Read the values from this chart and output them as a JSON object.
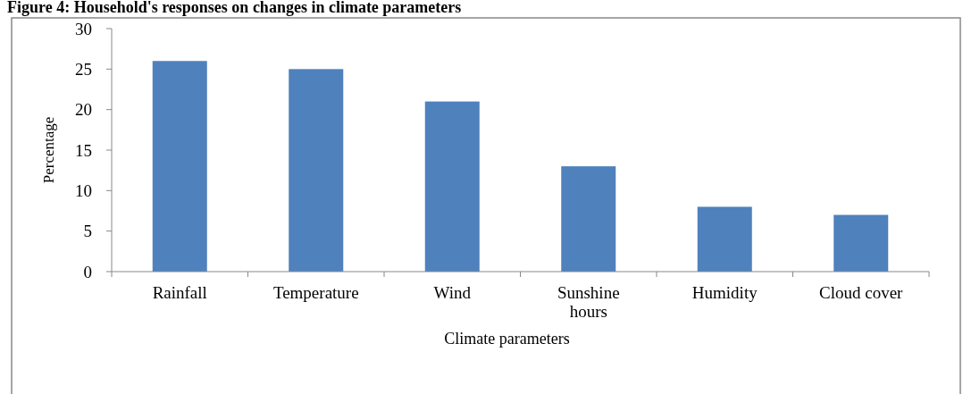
{
  "chart_data": {
    "type": "bar",
    "title": "Figure 4: Household's responses on changes in climate parameters",
    "xlabel": "Climate parameters",
    "ylabel": "Percentage",
    "categories": [
      "Rainfall",
      "Temperature",
      "Wind",
      "Sunshine hours",
      "Humidity",
      "Cloud cover"
    ],
    "values": [
      26,
      25,
      21,
      13,
      8,
      7
    ],
    "color": "#4f81bd",
    "ylim": [
      0,
      30
    ],
    "yticks": [
      0,
      5,
      10,
      15,
      20,
      25,
      30
    ],
    "grid": false
  }
}
